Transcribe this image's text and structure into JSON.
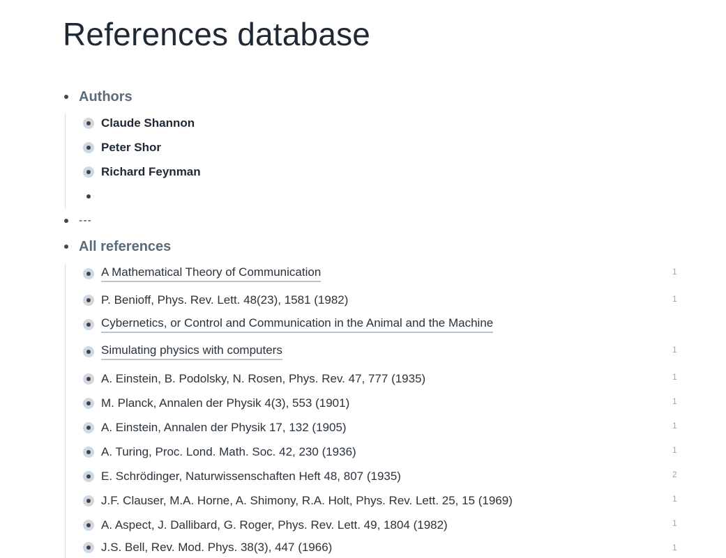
{
  "title": "References database",
  "sections": {
    "authors": {
      "label": "Authors",
      "items": [
        "Claude Shannon",
        "Peter Shor",
        "Richard Feynman",
        ""
      ]
    },
    "separator": {
      "label": "---"
    },
    "all_references": {
      "label": "All references",
      "items": [
        {
          "text": "A Mathematical Theory of Communication",
          "count": "1"
        },
        {
          "text": "P. Benioff, Phys. Rev. Lett. 48(23), 1581 (1982)",
          "count": "1"
        },
        {
          "text": "Cybernetics, or Control and Communication in the Animal and the Machine",
          "count": ""
        },
        {
          "text": "Simulating physics with computers",
          "count": "1"
        },
        {
          "text": "A. Einstein, B. Podolsky, N. Rosen, Phys. Rev. 47, 777 (1935)",
          "count": "1"
        },
        {
          "text": "M. Planck, Annalen der Physik 4(3), 553 (1901)",
          "count": "1"
        },
        {
          "text": "A. Einstein, Annalen der Physik 17, 132 (1905)",
          "count": "1"
        },
        {
          "text": "A. Turing, Proc. Lond. Math. Soc. 42, 230 (1936)",
          "count": "1"
        },
        {
          "text": "E. Schrödinger, Naturwissenschaften Heft 48, 807 (1935)",
          "count": "2"
        },
        {
          "text": "J.F. Clauser, M.A. Horne, A. Shimony, R.A. Holt, Phys. Rev. Lett. 25, 15 (1969)",
          "count": "1"
        },
        {
          "text": "A. Aspect, J. Dallibard, G. Roger, Phys. Rev. Lett. 49, 1804 (1982)",
          "count": "1"
        },
        {
          "text": "J.S. Bell, Rev. Mod. Phys. 38(3), 447 (1966)",
          "count": "1"
        }
      ]
    }
  }
}
